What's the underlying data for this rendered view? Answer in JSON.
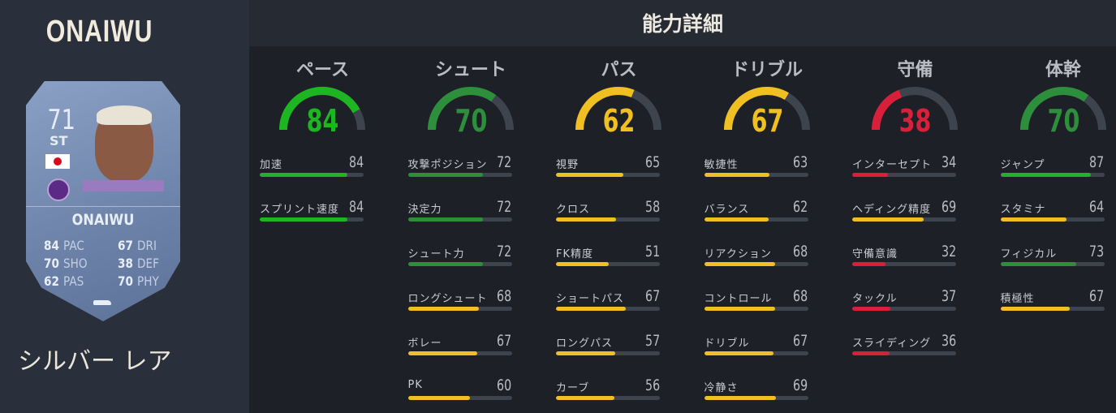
{
  "player": {
    "name": "ONAIWU",
    "card_name": "ONAIWU",
    "overall": "71",
    "position": "ST",
    "nationality_flag": "japan-flag",
    "rarity": "シルバー レア",
    "card_stats": [
      {
        "v": "84",
        "k": "PAC"
      },
      {
        "v": "70",
        "k": "SHO"
      },
      {
        "v": "62",
        "k": "PAS"
      },
      {
        "v": "67",
        "k": "DRI"
      },
      {
        "v": "38",
        "k": "DEF"
      },
      {
        "v": "70",
        "k": "PHY"
      }
    ]
  },
  "header": {
    "title": "能力詳細"
  },
  "colors": {
    "elite": "#1db521",
    "good": "#2d8f3c",
    "average": "#f0bf22",
    "poor": "#d8203a",
    "track": "#3d444e"
  },
  "categories": [
    {
      "title": "ペース",
      "value": 84,
      "attrs": [
        {
          "label": "加速",
          "value": 84
        },
        {
          "label": "スプリント速度",
          "value": 84
        }
      ]
    },
    {
      "title": "シュート",
      "value": 70,
      "attrs": [
        {
          "label": "攻撃ポジション",
          "value": 72
        },
        {
          "label": "決定力",
          "value": 72
        },
        {
          "label": "シュート力",
          "value": 72
        },
        {
          "label": "ロングシュート",
          "value": 68
        },
        {
          "label": "ボレー",
          "value": 67
        },
        {
          "label": "PK",
          "value": 60
        }
      ]
    },
    {
      "title": "パス",
      "value": 62,
      "attrs": [
        {
          "label": "視野",
          "value": 65
        },
        {
          "label": "クロス",
          "value": 58
        },
        {
          "label": "FK精度",
          "value": 51
        },
        {
          "label": "ショートパス",
          "value": 67
        },
        {
          "label": "ロングパス",
          "value": 57
        },
        {
          "label": "カーブ",
          "value": 56
        }
      ]
    },
    {
      "title": "ドリブル",
      "value": 67,
      "attrs": [
        {
          "label": "敏捷性",
          "value": 63
        },
        {
          "label": "バランス",
          "value": 62
        },
        {
          "label": "リアクション",
          "value": 68
        },
        {
          "label": "コントロール",
          "value": 68
        },
        {
          "label": "ドリブル",
          "value": 67
        },
        {
          "label": "冷静さ",
          "value": 69
        }
      ]
    },
    {
      "title": "守備",
      "value": 38,
      "attrs": [
        {
          "label": "インターセプト",
          "value": 34
        },
        {
          "label": "ヘディング精度",
          "value": 69
        },
        {
          "label": "守備意識",
          "value": 32
        },
        {
          "label": "タックル",
          "value": 37
        },
        {
          "label": "スライディング",
          "value": 36
        }
      ]
    },
    {
      "title": "体幹",
      "value": 70,
      "attrs": [
        {
          "label": "ジャンプ",
          "value": 87
        },
        {
          "label": "スタミナ",
          "value": 64
        },
        {
          "label": "フィジカル",
          "value": 73
        },
        {
          "label": "積極性",
          "value": 67
        }
      ]
    }
  ]
}
